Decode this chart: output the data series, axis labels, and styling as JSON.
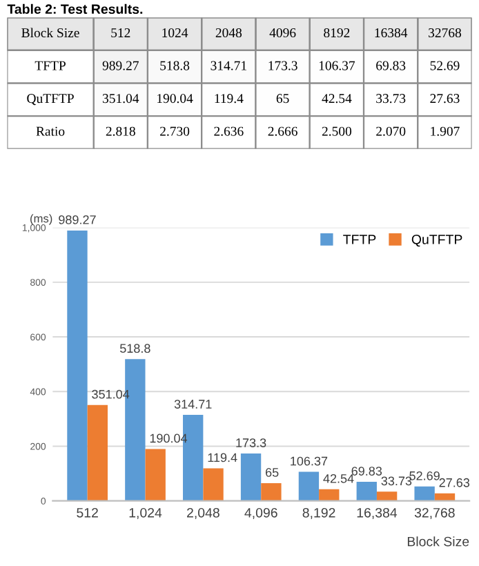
{
  "chart_data": [
    {
      "type": "heatmap",
      "title": "Table 2: Test Results.",
      "xlabel": "Block Size",
      "categories": [
        "512",
        "1024",
        "2048",
        "4096",
        "8192",
        "16384",
        "32768"
      ],
      "y_categories": [
        "TFTP",
        "QuTFTP",
        "Ratio"
      ],
      "cells": [
        [
          989.27,
          518.8,
          314.71,
          173.3,
          106.37,
          69.83,
          52.69
        ],
        [
          351.04,
          190.04,
          119.4,
          65,
          42.54,
          33.73,
          27.63
        ],
        [
          2.818,
          2.73,
          2.636,
          2.666,
          2.5,
          2.07,
          1.907
        ]
      ],
      "cell_labels": [
        [
          "989.27",
          "518.8",
          "314.71",
          "173.3",
          "106.37",
          "69.83",
          "52.69"
        ],
        [
          "351.04",
          "190.04",
          "119.4",
          "65",
          "42.54",
          "33.73",
          "27.63"
        ],
        [
          "2.818",
          "2.730",
          "2.636",
          "2.666",
          "2.500",
          "2.070",
          "1.907"
        ]
      ]
    },
    {
      "type": "bar",
      "ylabel": "(ms)",
      "xlabel": "Block Size",
      "categories": [
        "512",
        "1,024",
        "2,048",
        "4,096",
        "8,192",
        "16,384",
        "32,768"
      ],
      "series": [
        {
          "name": "TFTP",
          "color": "#5b9bd5",
          "values": [
            989.27,
            518.8,
            314.71,
            173.3,
            106.37,
            69.83,
            52.69
          ]
        },
        {
          "name": "QuTFTP",
          "color": "#ed7d31",
          "values": [
            351.04,
            190.04,
            119.4,
            65,
            42.54,
            33.73,
            27.63
          ]
        }
      ],
      "ylim": [
        0,
        1000
      ],
      "yticks": [
        0,
        200,
        400,
        600,
        800,
        {
          "value": 1000,
          "label": "1,000"
        }
      ],
      "grid": "y",
      "legend": "top right",
      "data_labels": true
    }
  ]
}
